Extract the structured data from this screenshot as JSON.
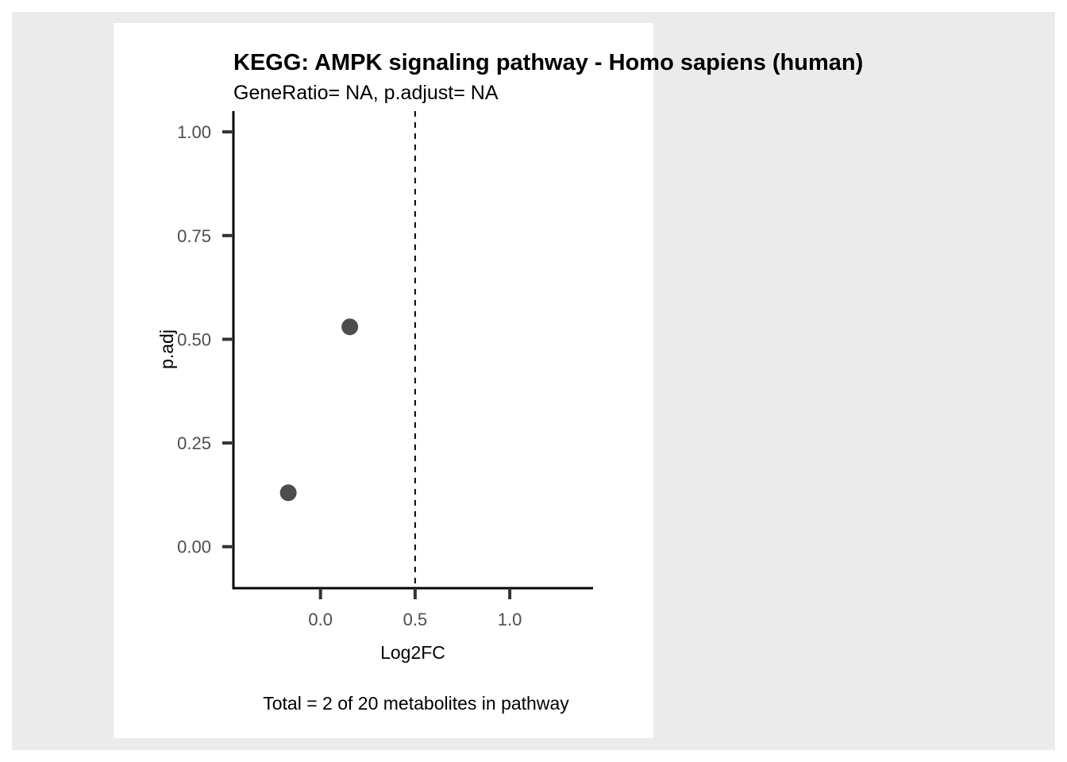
{
  "figure": {
    "title": "KEGG: AMPK signaling pathway - Homo sapiens (human)",
    "subtitle": "GeneRatio= NA, p.adjust= NA",
    "caption": "Total = 2 of 20 metabolites in pathway"
  },
  "colors": {
    "outer_background": "#ebebeb",
    "panel_background": "#ffffff",
    "point": "#4d4d4d",
    "axis": "#000000",
    "tick": "#333333",
    "tick_label": "#4d4d4d"
  },
  "chart_data": {
    "type": "scatter",
    "title": "KEGG: AMPK signaling pathway - Homo sapiens (human)",
    "subtitle": "GeneRatio= NA, p.adjust= NA",
    "caption": "Total = 2 of 20 metabolites in pathway",
    "xlabel": "Log2FC",
    "ylabel": "p.adj",
    "xlim": [
      -0.46,
      1.44
    ],
    "ylim": [
      -0.1,
      1.05
    ],
    "xticks": [
      0.0,
      0.5,
      1.0
    ],
    "xtick_labels": [
      "0.0",
      "0.5",
      "1.0"
    ],
    "yticks": [
      0.0,
      0.25,
      0.5,
      0.75,
      1.0
    ],
    "ytick_labels": [
      "0.00",
      "0.25",
      "0.50",
      "0.75",
      "1.00"
    ],
    "vline": {
      "x": 0.5,
      "style": "dashed"
    },
    "grid": false,
    "legend": "none",
    "series": [
      {
        "points": [
          {
            "x": -0.17,
            "y": 0.13
          },
          {
            "x": 0.155,
            "y": 0.53
          }
        ]
      }
    ]
  }
}
